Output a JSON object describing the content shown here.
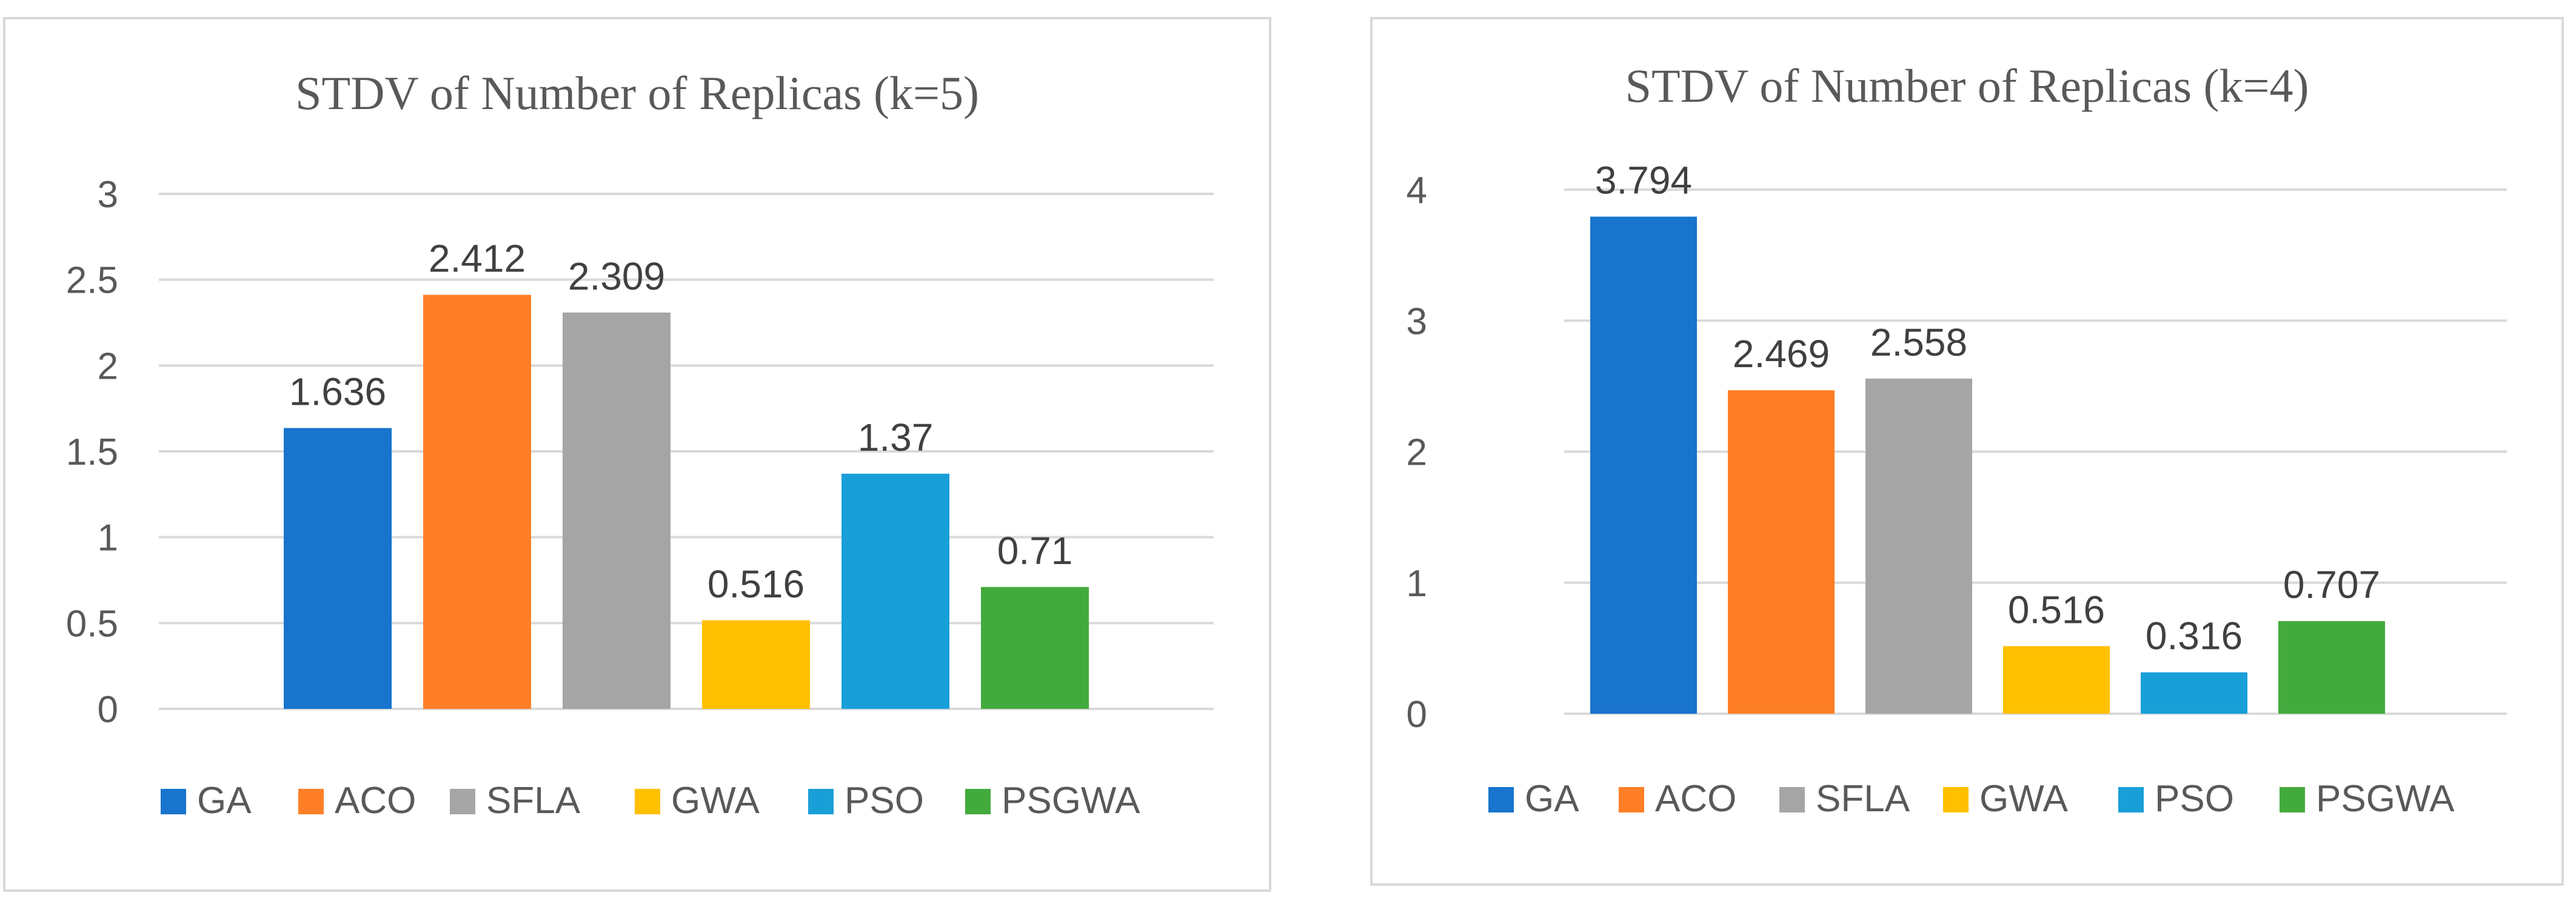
{
  "chart_data": [
    {
      "type": "bar",
      "title": "STDV of  Number of Replicas (k=5)",
      "categories": [
        "GA",
        "ACO",
        "SFLA",
        "GWA",
        "PSO",
        "PSGWA"
      ],
      "values": [
        1.636,
        2.412,
        2.309,
        0.516,
        1.37,
        0.71
      ],
      "value_labels": [
        "1.636",
        "2.412",
        "2.309",
        "0.516",
        "1.37",
        "0.71"
      ],
      "colors": [
        "#1874CD",
        "#FF7F27",
        "#A5A5A5",
        "#FFC000",
        "#199FD8",
        "#43AB3D"
      ],
      "ylim": [
        0,
        3
      ],
      "yticks": [
        0,
        0.5,
        1,
        1.5,
        2,
        2.5,
        3
      ],
      "ytick_labels": [
        "0",
        "0.5",
        "1",
        "1.5",
        "2",
        "2.5",
        "3"
      ],
      "xlabel": "",
      "ylabel": "",
      "grid": true,
      "legend_position": "bottom"
    },
    {
      "type": "bar",
      "title": "STDV of  Number of Replicas (k=4)",
      "categories": [
        "GA",
        "ACO",
        "SFLA",
        "GWA",
        "PSO",
        "PSGWA"
      ],
      "values": [
        3.794,
        2.469,
        2.558,
        0.516,
        0.316,
        0.707
      ],
      "value_labels": [
        "3.794",
        "2.469",
        "2.558",
        "0.516",
        "0.316",
        "0.707"
      ],
      "colors": [
        "#1874CD",
        "#FF7F27",
        "#A5A5A5",
        "#FFC000",
        "#199FD8",
        "#43AB3D"
      ],
      "ylim": [
        0,
        4
      ],
      "yticks": [
        0,
        1,
        2,
        3,
        4
      ],
      "ytick_labels": [
        "0",
        "1",
        "2",
        "3",
        "4"
      ],
      "xlabel": "",
      "ylabel": "",
      "grid": true,
      "legend_position": "bottom"
    }
  ]
}
